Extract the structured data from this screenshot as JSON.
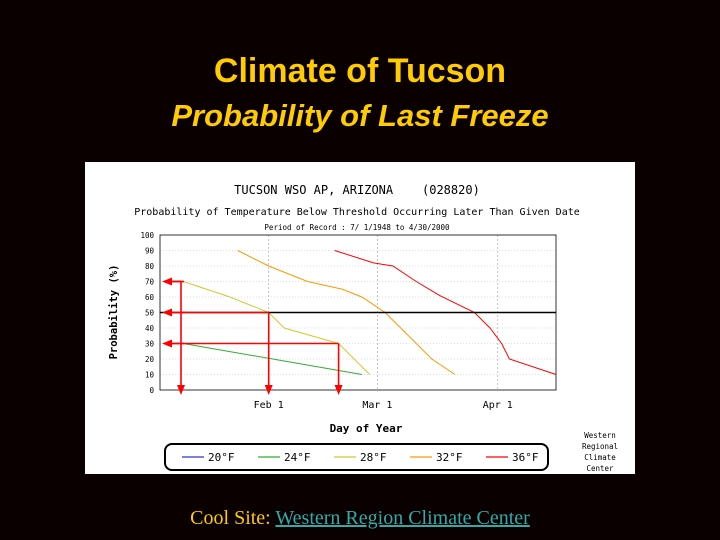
{
  "slide": {
    "title": "Climate of Tucson",
    "subtitle": "Probability of Last Freeze",
    "footer_label": "Cool Site:",
    "footer_link": "Western Region Climate Center"
  },
  "chart_data": {
    "type": "line",
    "title": "TUCSON WSO AP, ARIZONA    (028820)",
    "subtitle": "Probability of Temperature Below Threshold Occurring Later Than Given Date",
    "period": "Period of Record : 7/ 1/1948 to 4/30/2000",
    "xlabel": "Day of Year",
    "ylabel": "Probability (%)",
    "ylim": [
      0,
      100
    ],
    "yticks": [
      "0",
      "10",
      "20",
      "30",
      "40",
      "50",
      "60",
      "70",
      "80",
      "90",
      "100"
    ],
    "xticks": [
      {
        "label": "Feb 1",
        "day": 32
      },
      {
        "label": "Mar 1",
        "day": 60
      },
      {
        "label": "Apr 1",
        "day": 91
      }
    ],
    "xlim": [
      4,
      106
    ],
    "grid": true,
    "legend_position": "bottom",
    "attribution": [
      "Western",
      "Regional",
      "Climate",
      "Center"
    ],
    "series": [
      {
        "name": "20°F",
        "color": "#3333cc",
        "points": []
      },
      {
        "name": "24°F",
        "color": "#33aa33",
        "points": [
          [
            10,
            30
          ],
          [
            56,
            10
          ]
        ]
      },
      {
        "name": "28°F",
        "color": "#cccc33",
        "points": [
          [
            10,
            70
          ],
          [
            22,
            60
          ],
          [
            32,
            50
          ],
          [
            36,
            40
          ],
          [
            50,
            30
          ],
          [
            58,
            10
          ]
        ]
      },
      {
        "name": "32°F",
        "color": "#ff9900",
        "points": [
          [
            24,
            90
          ],
          [
            32,
            80
          ],
          [
            42,
            70
          ],
          [
            51,
            65
          ],
          [
            56,
            60
          ],
          [
            62,
            50
          ],
          [
            66,
            40
          ],
          [
            74,
            20
          ],
          [
            80,
            10
          ]
        ]
      },
      {
        "name": "36°F",
        "color": "#ff0000",
        "points": [
          [
            49,
            90
          ],
          [
            59,
            82
          ],
          [
            64,
            80
          ],
          [
            70,
            70
          ],
          [
            76,
            61
          ],
          [
            85,
            50
          ],
          [
            89,
            40
          ],
          [
            92,
            30
          ],
          [
            94,
            20
          ],
          [
            106,
            10
          ]
        ]
      }
    ],
    "threshold_line": 50,
    "annotations": {
      "arrows_to_yaxis": [
        70,
        50,
        30
      ],
      "arrows_to_xaxis": [
        10,
        32,
        50
      ],
      "guide_lines": [
        {
          "from_day": 4,
          "to_day": 32,
          "y": 50
        },
        {
          "from_day": 4,
          "to_day": 50,
          "y": 30
        }
      ]
    }
  }
}
